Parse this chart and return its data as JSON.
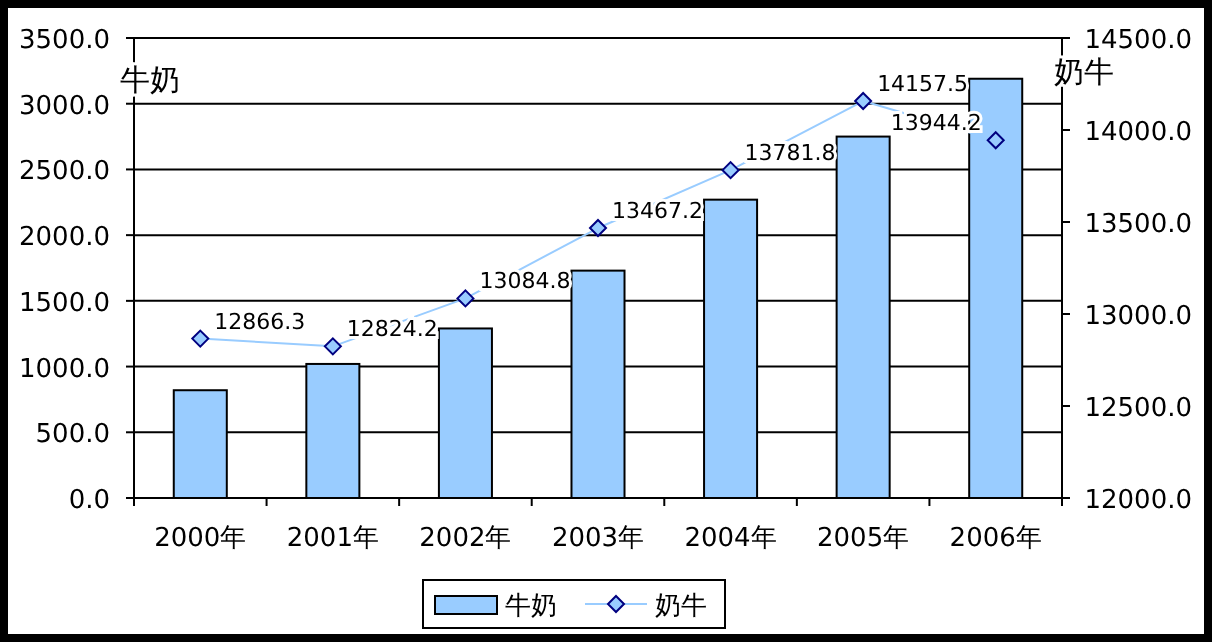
{
  "chart_data": {
    "type": "bar",
    "ylabel": "牛奶",
    "y2label": "奶牛",
    "categories": [
      "2000年",
      "2001年",
      "2002年",
      "2003年",
      "2004年",
      "2005年",
      "2006年"
    ],
    "series": [
      {
        "name": "牛奶",
        "color": "#99ccff",
        "values": [
          820,
          1020,
          1290,
          1730,
          2270,
          2750,
          3190
        ]
      },
      {
        "name": "奶牛",
        "type": "line",
        "axis": "y2",
        "color": "#99ccff",
        "marker": "diamond",
        "data_labels": true,
        "values": [
          12866.3,
          12824.2,
          13084.8,
          13467.2,
          13781.8,
          14157.5,
          13944.2
        ]
      }
    ],
    "ylim": [
      0,
      3500
    ],
    "yticks": [
      {
        "value": 0,
        "label": "0.0"
      },
      {
        "value": 500,
        "label": "500.0"
      },
      {
        "value": 1000,
        "label": "1000.0"
      },
      {
        "value": 1500,
        "label": "1500.0"
      },
      {
        "value": 2000,
        "label": "2000.0"
      },
      {
        "value": 2500,
        "label": "2500.0"
      },
      {
        "value": 3000,
        "label": "3000.0"
      },
      {
        "value": 3500,
        "label": "3500.0"
      }
    ],
    "y2lim": [
      12000,
      14500
    ],
    "y2ticks": [
      {
        "value": 12000,
        "label": "12000.0"
      },
      {
        "value": 12500,
        "label": "12500.0"
      },
      {
        "value": 13000,
        "label": "13000.0"
      },
      {
        "value": 13500,
        "label": "13500.0"
      },
      {
        "value": 14000,
        "label": "14000.0"
      },
      {
        "value": 14500,
        "label": "14500.0"
      }
    ],
    "grid": "y",
    "legend": "bottom"
  }
}
